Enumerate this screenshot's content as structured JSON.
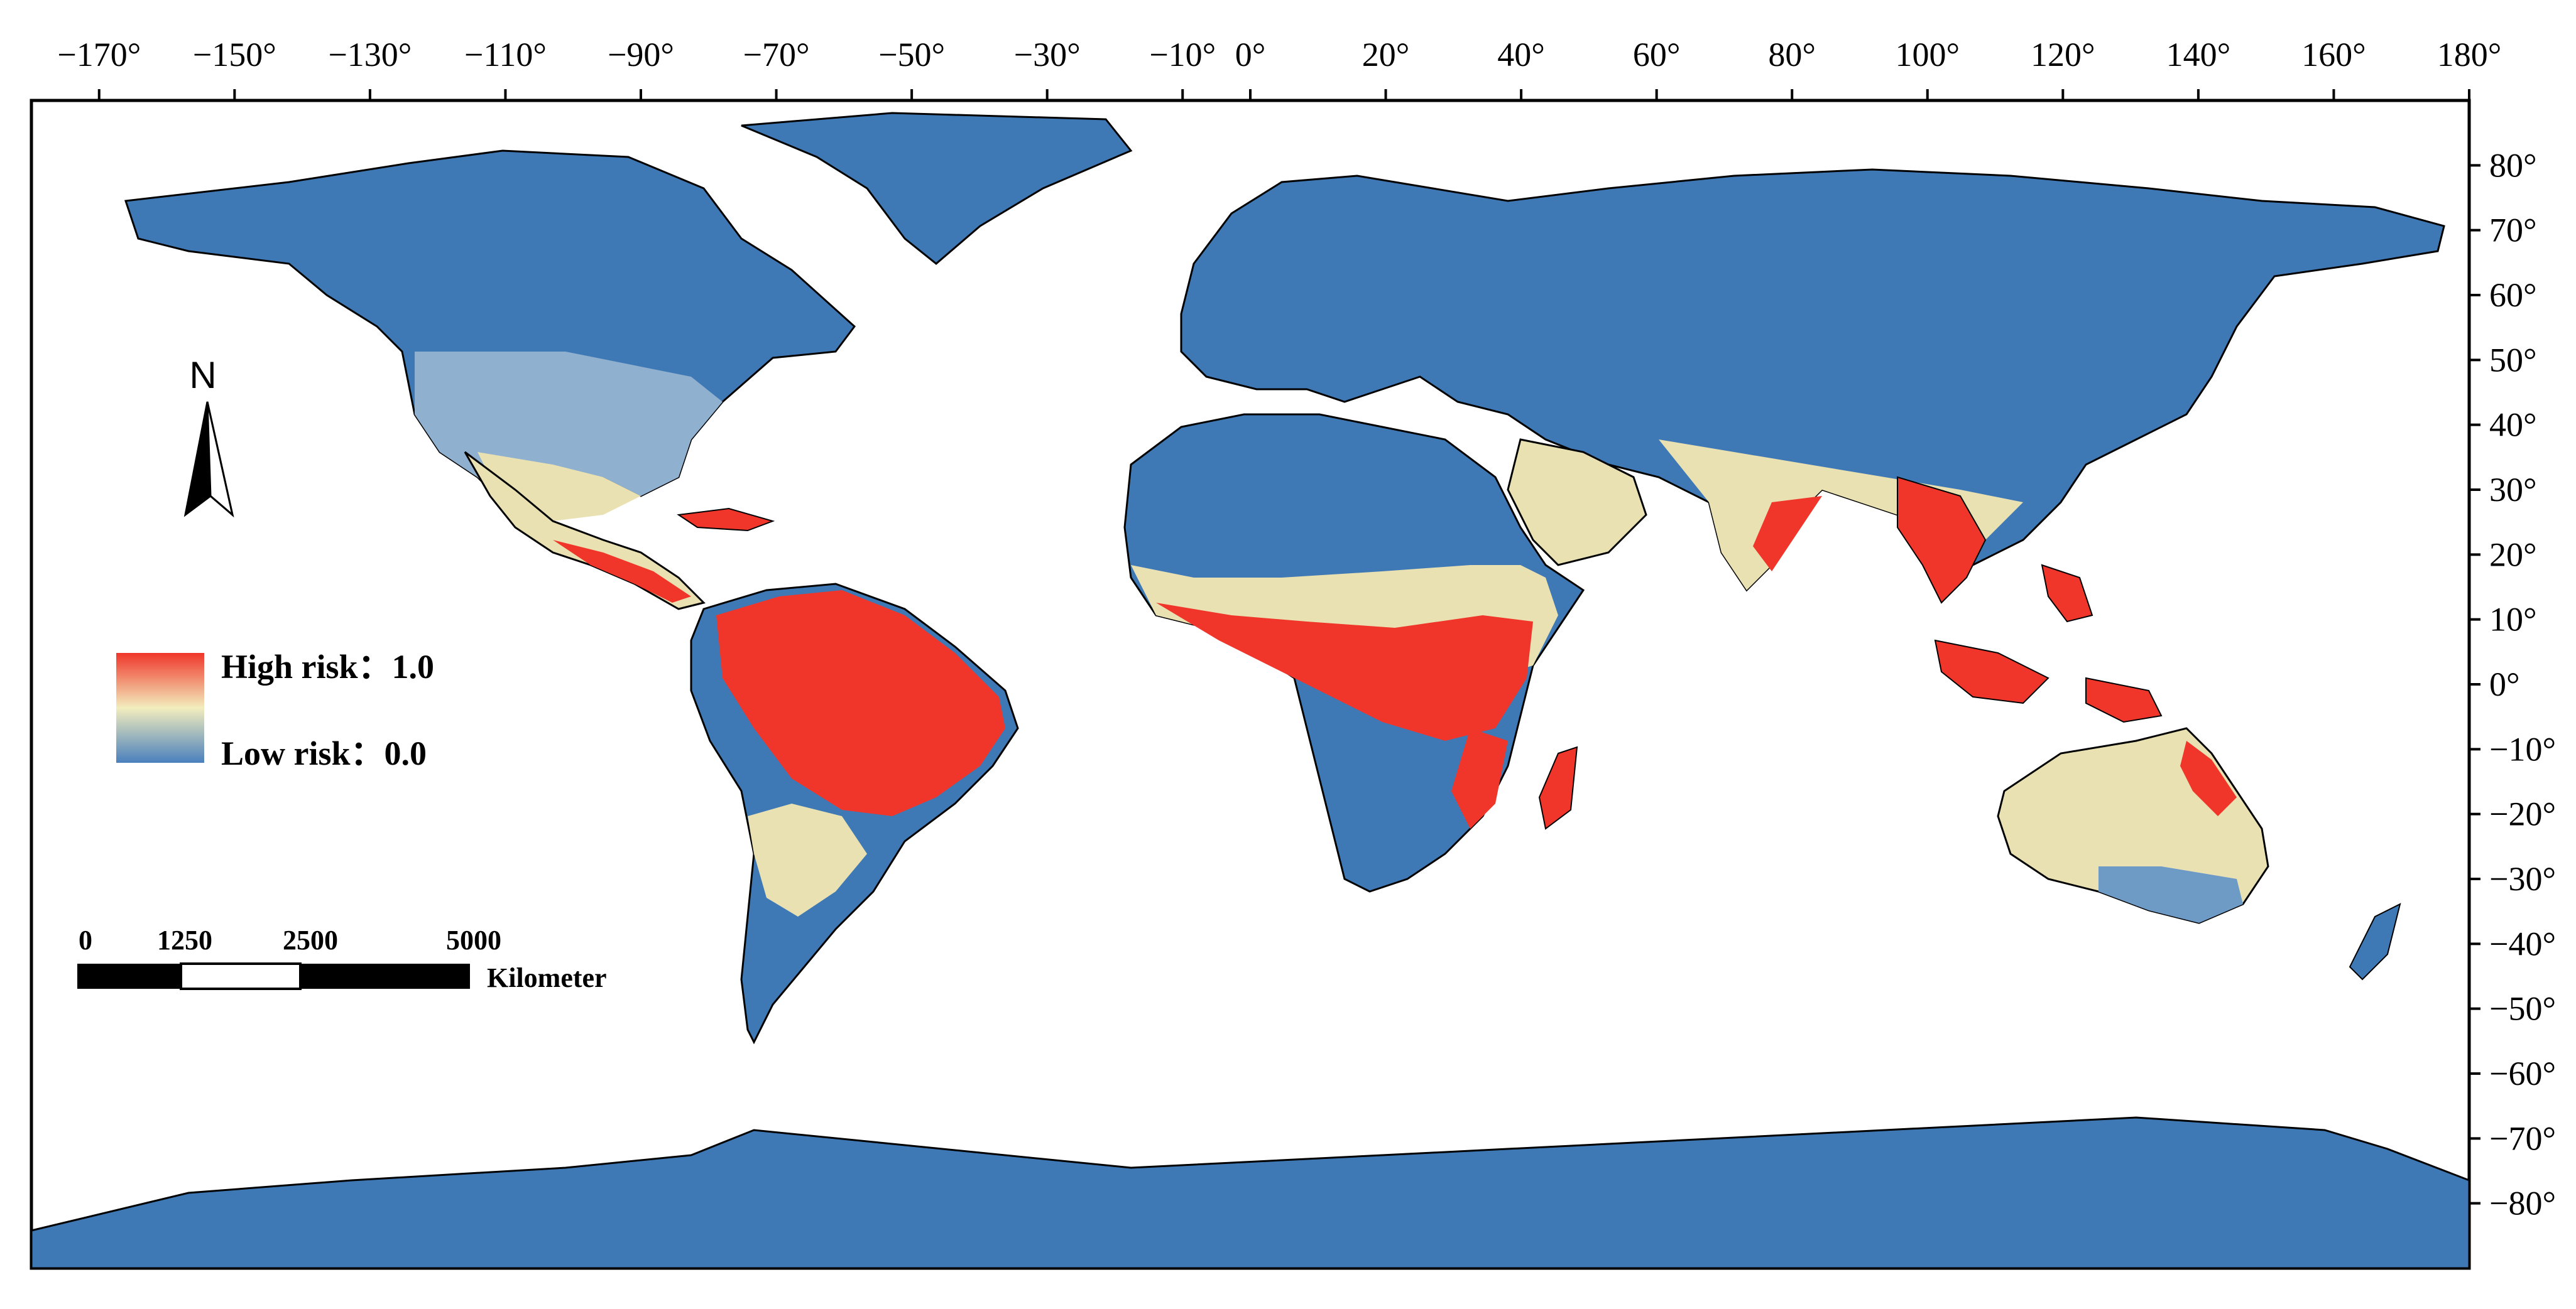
{
  "map": {
    "top_ticks": [
      "−170°",
      "−150°",
      "−130°",
      "−110°",
      "−90°",
      "−70°",
      "−50°",
      "−30°",
      "−10°",
      "0°",
      "20°",
      "40°",
      "60°",
      "80°",
      "100°",
      "120°",
      "140°",
      "160°",
      "180°"
    ],
    "right_ticks": [
      "80°",
      "70°",
      "60°",
      "50°",
      "40°",
      "30°",
      "20°",
      "10°",
      "0°",
      "−10°",
      "−20°",
      "−30°",
      "−40°",
      "−50°",
      "−60°",
      "−70°",
      "−80°"
    ],
    "north_arrow": {
      "label": "N"
    },
    "legend": {
      "high": "High risk：1.0",
      "low": "Low risk：0.0",
      "colors": {
        "high": "#f0362a",
        "mid": "#f2edbd",
        "low": "#4a80bd"
      }
    },
    "scale_bar": {
      "ticks": [
        "0",
        "1250",
        "2500",
        "5000"
      ],
      "unit": "Kilometer"
    },
    "colors": {
      "land_low": "#3f79b5",
      "land_high": "#f0362a",
      "land_mid": "#eadfae",
      "ocean": "#ffffff",
      "border": "#000000"
    }
  }
}
